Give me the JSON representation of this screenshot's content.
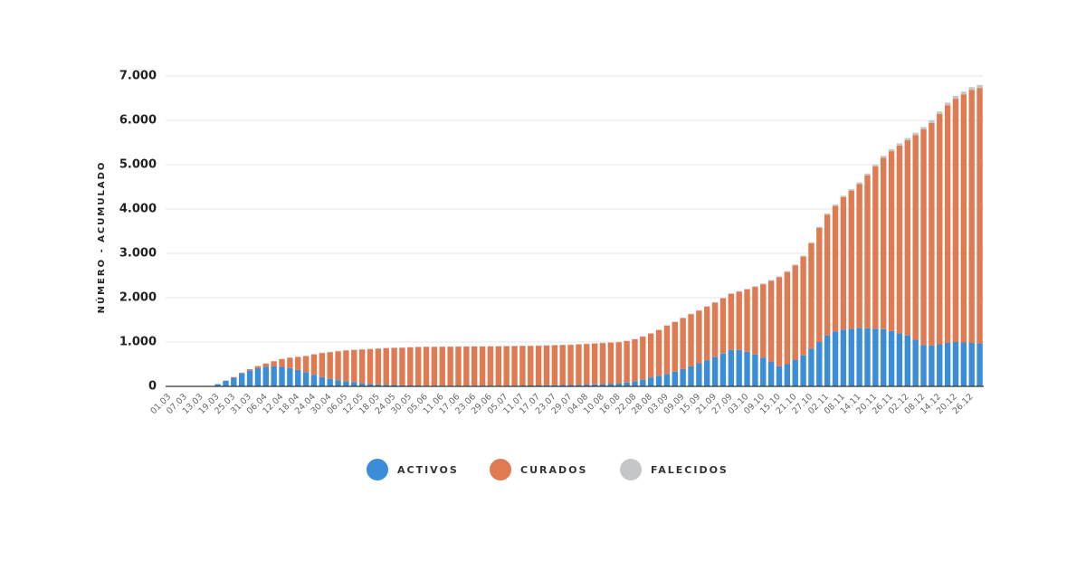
{
  "chart_data": {
    "type": "stacked_bar",
    "y_label": "NÚMERO - ACUMULADO",
    "categories": [
      "01.03",
      null,
      "07.03",
      null,
      "13.03",
      null,
      "19.03",
      null,
      "25.03",
      null,
      "31.03",
      null,
      "06.04",
      null,
      "12.04",
      null,
      "18.04",
      null,
      "24.04",
      null,
      "30.04",
      null,
      "06.05",
      null,
      "12.05",
      null,
      "18.05",
      null,
      "24.05",
      null,
      "30.05",
      null,
      "05.06",
      null,
      "11.06",
      null,
      "17.06",
      null,
      "23.06",
      null,
      "29.06",
      null,
      "05.07",
      null,
      "11.07",
      null,
      "17.07",
      null,
      "23.07",
      null,
      "29.07",
      null,
      "04.08",
      null,
      "10.08",
      null,
      "16.08",
      null,
      "22.08",
      null,
      "28.08",
      null,
      "03.09",
      null,
      "09.09",
      null,
      "15.09",
      null,
      "21.09",
      null,
      "27.09",
      null,
      "03.10",
      null,
      "09.10",
      null,
      "15.10",
      null,
      "21.10",
      null,
      "27.10",
      null,
      "02.11",
      null,
      "08.11",
      null,
      "14.11",
      null,
      "20.11",
      null,
      "26.11",
      null,
      "02.12",
      null,
      "08.12",
      null,
      "14.12",
      null,
      "20.12",
      null,
      "26.12",
      null
    ],
    "series": [
      {
        "name": "ACTIVOS",
        "color": "#3a8dd6",
        "values": [
          0,
          0,
          0,
          0,
          0,
          10,
          50,
          125,
          195,
          290,
          360,
          410,
          440,
          450,
          440,
          410,
          370,
          320,
          260,
          210,
          170,
          140,
          115,
          95,
          75,
          55,
          45,
          35,
          30,
          25,
          20,
          18,
          15,
          15,
          15,
          15,
          15,
          15,
          15,
          15,
          15,
          15,
          15,
          15,
          20,
          20,
          20,
          25,
          25,
          30,
          30,
          35,
          40,
          45,
          50,
          60,
          70,
          85,
          110,
          150,
          200,
          240,
          280,
          330,
          390,
          450,
          520,
          590,
          660,
          740,
          820,
          820,
          780,
          720,
          650,
          560,
          450,
          500,
          600,
          700,
          850,
          1000,
          1150,
          1240,
          1280,
          1300,
          1320,
          1310,
          1300,
          1290,
          1250,
          1200,
          1150,
          1050,
          930,
          920,
          950,
          980,
          1000,
          990,
          980,
          970
        ]
      },
      {
        "name": "CURADOS",
        "color": "#e07a52",
        "values": [
          0,
          0,
          0,
          0,
          2,
          0,
          0,
          5,
          15,
          19,
          28,
          47,
          76,
          115,
          174,
          233,
          292,
          361,
          461,
          541,
          601,
          651,
          696,
          726,
          756,
          786,
          806,
          826,
          836,
          846,
          861,
          868,
          876,
          876,
          878,
          880,
          881,
          882,
          883,
          884,
          886,
          888,
          890,
          892,
          889,
          891,
          896,
          896,
          901,
          901,
          906,
          911,
          916,
          921,
          926,
          926,
          926,
          936,
          951,
          971,
          991,
          1030,
          1090,
          1119,
          1149,
          1178,
          1188,
          1207,
          1227,
          1246,
          1266,
          1315,
          1404,
          1523,
          1652,
          1821,
          2010,
          2079,
          2128,
          2226,
          2374,
          2572,
          2720,
          2828,
          2986,
          3114,
          3242,
          3450,
          3658,
          3866,
          4054,
          4232,
          4400,
          4618,
          4866,
          5024,
          5192,
          5360,
          5488,
          5596,
          5704,
          5762
        ]
      },
      {
        "name": "FALECIDOS",
        "color": "#c4c6c8",
        "values": [
          0,
          0,
          0,
          0,
          0,
          0,
          0,
          0,
          0,
          1,
          2,
          3,
          4,
          5,
          6,
          7,
          8,
          9,
          9,
          9,
          9,
          9,
          9,
          9,
          9,
          9,
          9,
          9,
          9,
          9,
          9,
          9,
          9,
          9,
          9,
          9,
          9,
          9,
          9,
          9,
          9,
          9,
          9,
          9,
          9,
          9,
          9,
          9,
          9,
          9,
          9,
          9,
          9,
          9,
          9,
          9,
          9,
          9,
          9,
          9,
          9,
          10,
          10,
          11,
          11,
          12,
          12,
          13,
          13,
          14,
          14,
          15,
          16,
          17,
          18,
          19,
          20,
          21,
          22,
          24,
          26,
          28,
          30,
          32,
          34,
          36,
          38,
          40,
          42,
          44,
          46,
          48,
          50,
          52,
          54,
          56,
          58,
          60,
          62,
          64,
          66,
          68
        ]
      }
    ],
    "ylim": [
      0,
      7000
    ],
    "yticks": [
      0,
      {
        "value": 1000,
        "label": "1.000"
      },
      {
        "value": 2000,
        "label": "2.000"
      },
      {
        "value": 3000,
        "label": "3.000"
      },
      {
        "value": 4000,
        "label": "4.000"
      },
      {
        "value": 5000,
        "label": "5.000"
      },
      {
        "value": 6000,
        "label": "6.000"
      },
      {
        "value": 7000,
        "label": "7.000"
      }
    ],
    "grid": true
  }
}
